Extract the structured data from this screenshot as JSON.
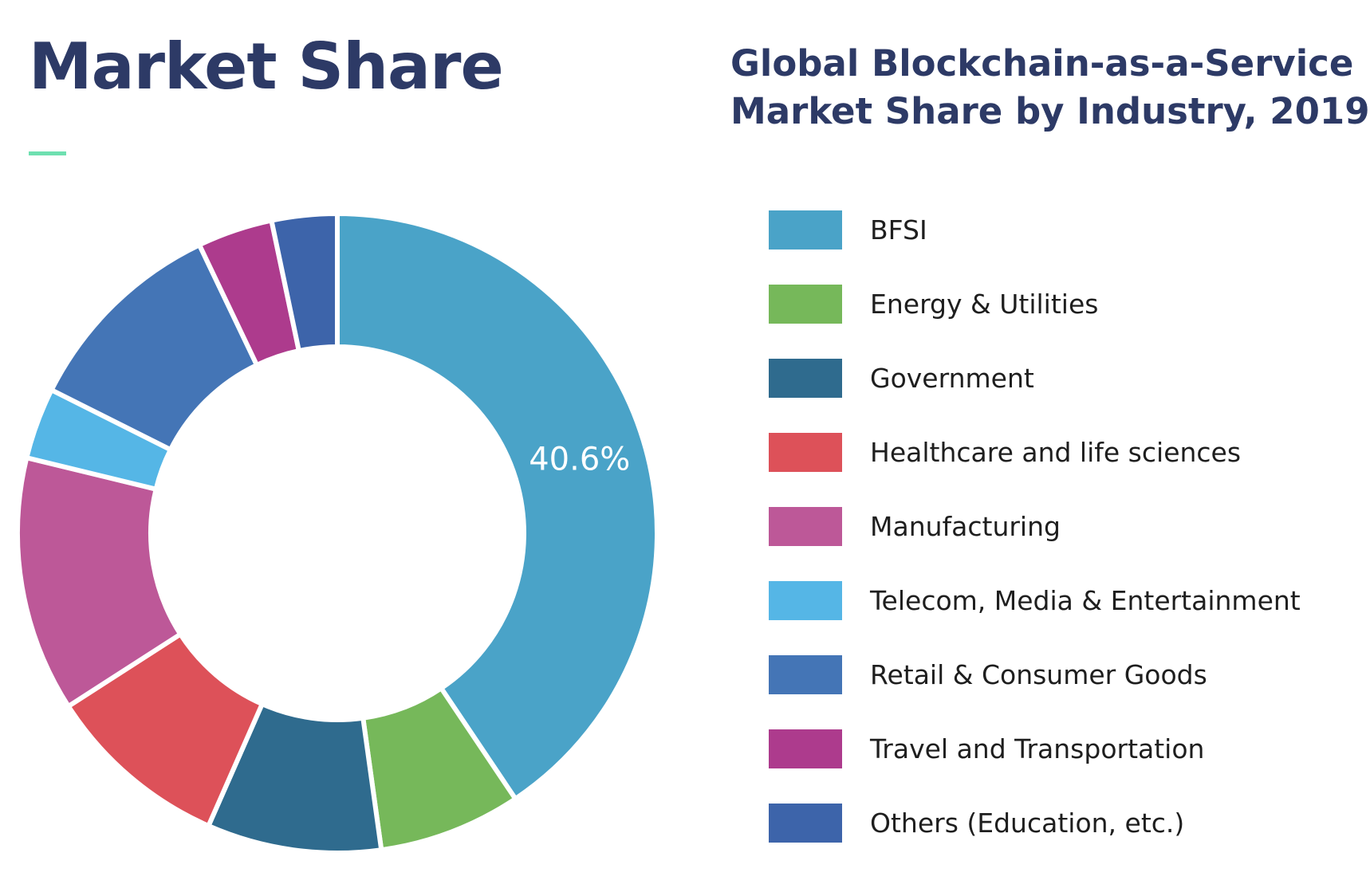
{
  "header": {
    "title": "Market Share"
  },
  "chart_title_lines": [
    "Global Blockchain-as-a-Service",
    "Market Share by Industry, 2019"
  ],
  "chart_data": {
    "type": "pie",
    "title": "Global Blockchain-as-a-Service Market Share by Industry, 2019",
    "categories": [
      "BFSI",
      "Energy & Utilities",
      "Government",
      "Healthcare and life sciences",
      "Manufacturing",
      "Telecom, Media & Entertainment",
      "Retail & Consumer Goods",
      "Travel and Transportation",
      "Others (Education, etc.)"
    ],
    "values": [
      40.6,
      7.2,
      8.8,
      9.3,
      12.9,
      3.6,
      10.5,
      3.8,
      3.3
    ],
    "units": "%",
    "data_labels": [
      {
        "category": "BFSI",
        "text": "40.6%"
      }
    ],
    "colors": [
      "#4aa3c8",
      "#76b85a",
      "#2f6b8e",
      "#dd5159",
      "#bd5898",
      "#55b6e6",
      "#4475b6",
      "#ad3b8d",
      "#3d64aa"
    ],
    "donut": true,
    "legend_position": "right"
  }
}
